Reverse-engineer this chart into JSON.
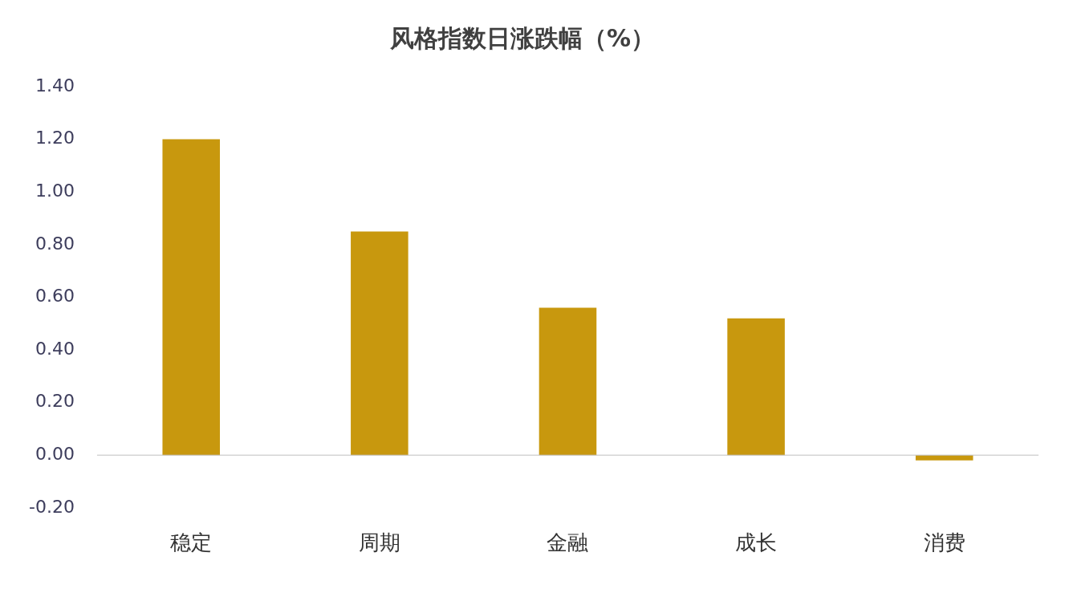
{
  "chart_data": {
    "type": "bar",
    "title": "风格指数日涨跌幅（%）",
    "categories": [
      "稳定",
      "周期",
      "金融",
      "成长",
      "消费"
    ],
    "values": [
      1.2,
      0.85,
      0.56,
      0.52,
      -0.02
    ],
    "color": "#c8980e",
    "ylim": [
      -0.2,
      1.4
    ],
    "yticks": [
      {
        "value": -0.2,
        "label": "-0.20"
      },
      {
        "value": 0,
        "label": "0.00"
      },
      {
        "value": 0.2,
        "label": "0.20"
      },
      {
        "value": 0.4,
        "label": "0.40"
      },
      {
        "value": 0.6,
        "label": "0.60"
      },
      {
        "value": 0.8,
        "label": "0.80"
      },
      {
        "value": 1,
        "label": "1.00"
      },
      {
        "value": 1.2,
        "label": "1.20"
      },
      {
        "value": 1.4,
        "label": "1.40"
      }
    ],
    "ref_lines": [
      {
        "axis": "y",
        "value": 0,
        "color": "#bfbfbf"
      }
    ],
    "grid": false,
    "legend": false
  }
}
